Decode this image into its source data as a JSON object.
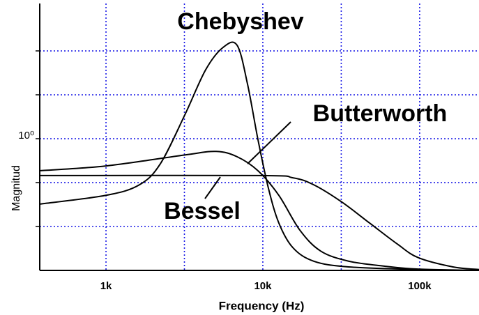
{
  "chart_data": {
    "type": "line",
    "xlabel": "Frequency (Hz)",
    "ylabel": "Magnitud",
    "log_x": true,
    "grid": true,
    "xlim": [
      378,
      239000
    ],
    "ylim": [
      0,
      6.08
    ],
    "xticks": [
      {
        "value": 1000,
        "label": "1k"
      },
      {
        "value": 3162,
        "label": null
      },
      {
        "value": 10000,
        "label": "10k"
      },
      {
        "value": 31623,
        "label": null
      },
      {
        "value": 100000,
        "label": "100k"
      }
    ],
    "yticks": [
      {
        "value": 1,
        "label": null
      },
      {
        "value": 2,
        "label": null
      },
      {
        "value": 3,
        "label": "10⁰"
      },
      {
        "value": 4,
        "label": null
      },
      {
        "value": 5,
        "label": null
      }
    ],
    "series": [
      {
        "name": "Chebyshev",
        "color": "#000000",
        "x": [
          378,
          1000,
          1634,
          2222,
          3179,
          4320,
          5580,
          6850,
          7980,
          9310,
          10860,
          12650,
          15530,
          21100,
          35200,
          98000,
          239000
        ],
        "values": [
          1.51,
          1.71,
          1.95,
          2.43,
          3.54,
          4.57,
          5.08,
          5.13,
          4.25,
          2.98,
          1.87,
          1.08,
          0.52,
          0.21,
          0.08,
          0.02,
          0
        ]
      },
      {
        "name": "Butterworth",
        "color": "#000000",
        "x": [
          378,
          1000,
          3179,
          5037,
          6850,
          9310,
          12650,
          17200,
          23400,
          35200,
          58700,
          98000,
          239000
        ],
        "values": [
          2.27,
          2.38,
          2.63,
          2.71,
          2.59,
          2.27,
          1.71,
          0.92,
          0.44,
          0.21,
          0.1,
          0.03,
          0
        ]
      },
      {
        "name": "Bessel",
        "color": "#000000",
        "x": [
          378,
          9310,
          15530,
          21100,
          31800,
          47900,
          72100,
          98000,
          163000,
          239000
        ],
        "values": [
          2.16,
          2.16,
          2.11,
          1.95,
          1.56,
          1.08,
          0.6,
          0.29,
          0.08,
          0.02
        ]
      }
    ]
  }
}
